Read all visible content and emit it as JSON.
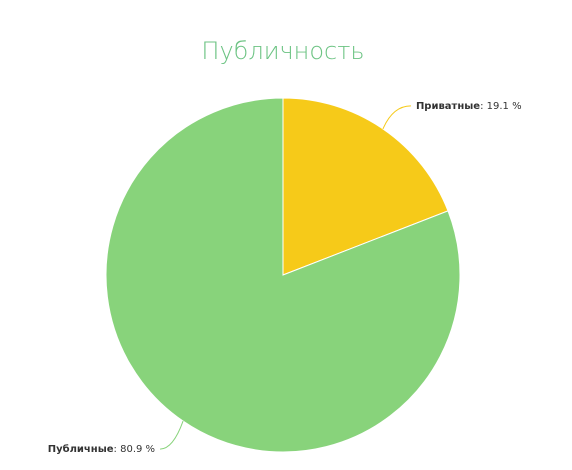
{
  "chart_data": {
    "type": "pie",
    "title": "Публичность",
    "categories": [
      "Приватные",
      "Публичные"
    ],
    "values": [
      19.1,
      80.9
    ],
    "value_labels": [
      ": 19.1 %",
      ": 80.9 %"
    ],
    "colors": [
      "#f6ca19",
      "#88d37b"
    ]
  }
}
